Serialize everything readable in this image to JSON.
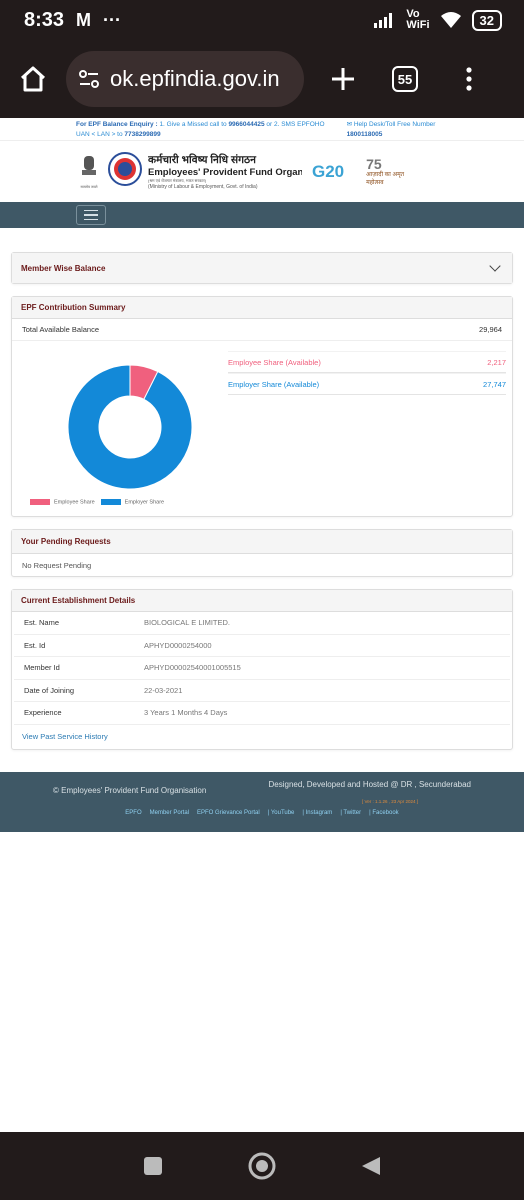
{
  "status_bar": {
    "time": "8:33",
    "carrier_icon": "M",
    "dots": "···",
    "vowifi_top": "Vo",
    "vowifi_bottom": "WiFi",
    "battery": "32"
  },
  "browser": {
    "url": "ok.epfindia.gov.in",
    "tab_count": "55"
  },
  "enquiry": {
    "line1_prefix": "For EPF Balance Enquiry : ",
    "line1_text": "1. Give a Missed call to ",
    "missed_call": "9966044425",
    "line1_suffix": " or 2. SMS EPFOHO",
    "line2_text": "UAN < LAN > to ",
    "sms_number": "7738299899",
    "helpdesk_label": "Help Desk/Toll Free Number",
    "helpdesk_number": "1800118005"
  },
  "brand": {
    "hindi_name": "कर्मचारी भविष्य निधि संगठन",
    "english_name": "Employees' Provident Fund Organisa",
    "sub_hindi": "(श्रम एवं रोजगार मंत्रालय, भारत सरकार)",
    "ministry": "(Ministry of Labour & Employment, Govt. of India)",
    "g20": "G20",
    "azadi_num": "75",
    "azadi_text": "आज़ादी का अमृत महोत्सव",
    "emblem_caption": "सत्यमेव जयते"
  },
  "member_wise": {
    "title": "Member Wise Balance"
  },
  "contribution": {
    "title": "EPF Contribution Summary",
    "total_label": "Total Available Balance",
    "total_value": "29,964",
    "employee_label": "Employee Share (Available)",
    "employee_value": "2,217",
    "employer_label": "Employer Share (Available)",
    "employer_value": "27,747",
    "employee_color": "#f0607e",
    "employer_color": "#1389d8"
  },
  "chart_data": {
    "type": "pie",
    "title": "",
    "categories": [
      "Employee Share",
      "Employer Share"
    ],
    "values": [
      2217,
      27747
    ],
    "colors": [
      "#f0607e",
      "#1389d8"
    ],
    "legend": "bottom"
  },
  "pending": {
    "title": "Your Pending Requests",
    "text": "No Request Pending"
  },
  "establishment": {
    "title": "Current Establishment Details",
    "rows": [
      {
        "label": "Est. Name",
        "value": "BIOLOGICAL E LIMITED."
      },
      {
        "label": "Est. Id",
        "value": "APHYD0000254000"
      },
      {
        "label": "Member Id",
        "value": "APHYD00002540001005515"
      },
      {
        "label": "Date of Joining",
        "value": "22-03-2021"
      },
      {
        "label": "Experience",
        "value": "3 Years 1 Months 4 Days"
      }
    ],
    "link": "View Past Service History"
  },
  "footer": {
    "copyright": "© Employees' Provident Fund Organisation",
    "designed": "Designed, Developed and Hosted @ DR , Secunderabad",
    "version": "[ Ver : 1.1.26 , 23 Apr 2024 ]",
    "links": [
      "EPFO",
      "Member Portal",
      "EPFO Grievance Portal",
      "| YouTube",
      "| Instagram",
      "| Twitter",
      "| Facebook"
    ]
  }
}
